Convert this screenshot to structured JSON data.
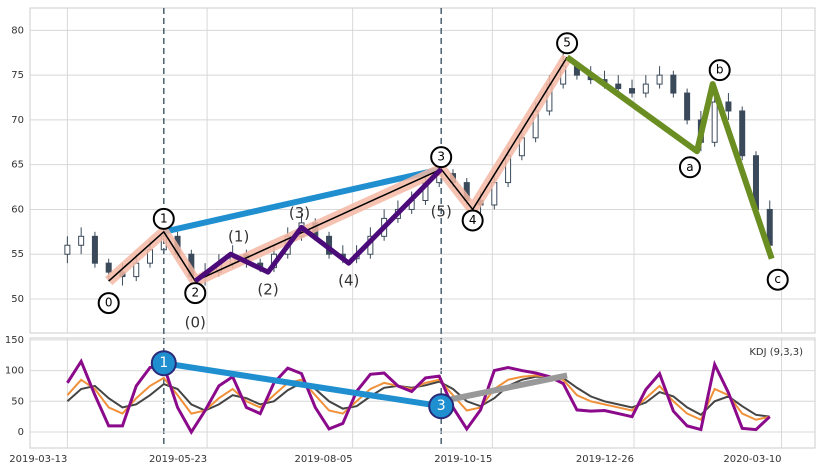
{
  "chart_data": [
    {
      "type": "candlestick",
      "x": [
        "2019-03-13",
        "2019-03-20",
        "2019-03-27",
        "2019-04-03",
        "2019-04-10",
        "2019-04-17",
        "2019-04-24",
        "2019-05-01",
        "2019-05-08",
        "2019-05-15",
        "2019-05-22",
        "2019-05-29",
        "2019-06-05",
        "2019-06-12",
        "2019-06-19",
        "2019-06-26",
        "2019-07-03",
        "2019-07-10",
        "2019-07-17",
        "2019-07-24",
        "2019-07-31",
        "2019-08-07",
        "2019-08-14",
        "2019-08-21",
        "2019-08-28",
        "2019-09-04",
        "2019-09-11",
        "2019-09-18",
        "2019-09-25",
        "2019-10-02",
        "2019-10-09",
        "2019-10-16",
        "2019-10-23",
        "2019-10-30",
        "2019-11-06",
        "2019-11-13",
        "2019-11-20",
        "2019-11-27",
        "2019-12-04",
        "2019-12-11",
        "2019-12-18",
        "2019-12-25",
        "2020-01-01",
        "2020-01-08",
        "2020-01-15",
        "2020-01-22",
        "2020-01-29",
        "2020-02-05",
        "2020-02-12",
        "2020-02-19",
        "2020-02-26",
        "2020-03-04"
      ],
      "open": [
        55,
        56,
        57,
        54,
        53,
        52.5,
        54,
        55.5,
        57,
        55,
        52.5,
        53,
        54,
        55,
        54,
        53.5,
        55,
        57,
        58.5,
        57,
        55,
        54.5,
        55,
        57,
        59,
        60,
        61,
        63,
        64,
        63,
        61,
        60.5,
        63,
        66,
        68,
        71,
        74,
        76,
        75,
        74.5,
        74,
        73.5,
        73,
        74,
        75,
        73,
        70,
        67.5,
        72,
        71,
        66,
        60
      ],
      "high": [
        57,
        58,
        57.5,
        54.5,
        54,
        55,
        56.5,
        58,
        57.5,
        55.5,
        54,
        55,
        56,
        55.5,
        54.5,
        56,
        58,
        59.5,
        59,
        57.5,
        56,
        56,
        58,
        60,
        61,
        62,
        64,
        65,
        64.5,
        63.5,
        62,
        64,
        67,
        69,
        72,
        75,
        77.5,
        76.5,
        76,
        75.5,
        75,
        74.5,
        75,
        76,
        75.5,
        73.5,
        71,
        73,
        73,
        71.5,
        66.5,
        61
      ],
      "low": [
        54,
        55,
        53.5,
        52,
        51.5,
        52,
        53.5,
        55,
        54.5,
        52,
        51.5,
        52.5,
        53.5,
        53.5,
        53,
        53,
        54.5,
        56.5,
        56.5,
        54.5,
        54,
        54,
        54.5,
        56.5,
        58.5,
        59.5,
        60.5,
        62.5,
        62.5,
        60.5,
        59.5,
        60,
        62.5,
        65.5,
        67.5,
        70.5,
        73.5,
        74.5,
        74,
        73.5,
        73,
        72.5,
        72.5,
        73.5,
        72.5,
        69.5,
        66.5,
        67,
        70,
        65.5,
        59.5,
        55
      ],
      "close": [
        56,
        57,
        54,
        53,
        52.5,
        54,
        55.5,
        57,
        55,
        52.5,
        53,
        54,
        55,
        54,
        53.5,
        55,
        57,
        58.5,
        57,
        55,
        54.5,
        55,
        57,
        59,
        60,
        61,
        63,
        64,
        63,
        61,
        60.5,
        63,
        66,
        68,
        71,
        74,
        76,
        75,
        74.5,
        74,
        73.5,
        73,
        74,
        75,
        73,
        70,
        67.5,
        72,
        71,
        66,
        60,
        56
      ],
      "color": "#3b4a5a",
      "xlim": [
        "2019-02-22",
        "2020-03-27"
      ],
      "xticks": [
        "2019-03-13",
        "2019-05-23",
        "2019-08-05",
        "2019-10-15",
        "2019-12-26",
        "2020-03-10"
      ],
      "ylim": [
        46.2,
        82.5
      ],
      "yticks": [
        50,
        55,
        60,
        65,
        70,
        75,
        80
      ],
      "grid": true,
      "vlines": {
        "color": "#4a6070",
        "x": [
          "2019-05-01",
          "2019-09-19"
        ]
      },
      "impulse": {
        "color": "#f5b7a3",
        "line_color": "#000000",
        "points": [
          {
            "label": "0",
            "x": "2019-04-03",
            "y": 52
          },
          {
            "label": "1",
            "x": "2019-05-01",
            "y": 57.5
          },
          {
            "label": "2",
            "x": "2019-05-17",
            "y": 52
          },
          {
            "label": "3",
            "x": "2019-09-19",
            "y": 64.5
          },
          {
            "label": "4",
            "x": "2019-10-05",
            "y": 60
          },
          {
            "label": "5",
            "x": "2019-11-22",
            "y": 77
          }
        ]
      },
      "subwaves": {
        "color": "#4b0c7a",
        "points": [
          {
            "label": "(0)",
            "x": "2019-05-17",
            "y": 52
          },
          {
            "label": "(1)",
            "x": "2019-06-04",
            "y": 55
          },
          {
            "label": "(2)",
            "x": "2019-06-23",
            "y": 53
          },
          {
            "label": "(3)",
            "x": "2019-07-10",
            "y": 58
          },
          {
            "label": "(4)",
            "x": "2019-08-03",
            "y": 54
          },
          {
            "label": "(5)",
            "x": "2019-09-19",
            "y": 64.5
          }
        ]
      },
      "correction": {
        "color": "#6b8e23",
        "points": [
          {
            "x": "2019-11-22",
            "y": 77
          },
          {
            "label": "a",
            "x": "2020-01-27",
            "y": 66.5
          },
          {
            "label": "b",
            "x": "2020-02-04",
            "y": 74
          },
          {
            "label": "c",
            "x": "2020-03-05",
            "y": 54.5
          }
        ]
      },
      "trend": {
        "color": "#1f8fd0",
        "points": [
          {
            "x": "2019-05-01",
            "y": 57.5
          },
          {
            "x": "2019-09-19",
            "y": 64.5
          }
        ]
      }
    },
    {
      "type": "line",
      "label": "KDJ (9,3,3)",
      "x": [
        "2019-03-13",
        "2019-03-20",
        "2019-03-27",
        "2019-04-03",
        "2019-04-10",
        "2019-04-17",
        "2019-04-24",
        "2019-05-01",
        "2019-05-08",
        "2019-05-15",
        "2019-05-22",
        "2019-05-29",
        "2019-06-05",
        "2019-06-12",
        "2019-06-19",
        "2019-06-26",
        "2019-07-03",
        "2019-07-10",
        "2019-07-17",
        "2019-07-24",
        "2019-07-31",
        "2019-08-07",
        "2019-08-14",
        "2019-08-21",
        "2019-08-28",
        "2019-09-04",
        "2019-09-11",
        "2019-09-18",
        "2019-09-25",
        "2019-10-02",
        "2019-10-09",
        "2019-10-16",
        "2019-10-23",
        "2019-10-30",
        "2019-11-06",
        "2019-11-13",
        "2019-11-20",
        "2019-11-27",
        "2019-12-04",
        "2019-12-11",
        "2019-12-18",
        "2019-12-25",
        "2020-01-01",
        "2020-01-08",
        "2020-01-15",
        "2020-01-22",
        "2020-01-29",
        "2020-02-05",
        "2020-02-12",
        "2020-02-19",
        "2020-02-26",
        "2020-03-04"
      ],
      "series": [
        {
          "color": "#444444",
          "values": [
            50,
            70,
            75,
            55,
            40,
            45,
            60,
            78,
            70,
            45,
            35,
            45,
            60,
            55,
            45,
            50,
            68,
            80,
            70,
            50,
            38,
            42,
            58,
            72,
            75,
            72,
            76,
            82,
            70,
            50,
            42,
            55,
            75,
            85,
            90,
            90,
            88,
            72,
            58,
            50,
            45,
            40,
            48,
            65,
            58,
            40,
            28,
            50,
            58,
            42,
            28,
            25
          ]
        },
        {
          "color": "#f0913a",
          "values": [
            60,
            85,
            70,
            40,
            30,
            55,
            75,
            88,
            60,
            30,
            35,
            55,
            70,
            50,
            40,
            60,
            80,
            85,
            60,
            35,
            30,
            50,
            70,
            80,
            75,
            70,
            80,
            85,
            60,
            35,
            40,
            70,
            85,
            90,
            92,
            90,
            85,
            60,
            50,
            45,
            40,
            35,
            55,
            75,
            50,
            30,
            20,
            70,
            60,
            30,
            20,
            25
          ]
        },
        {
          "color": "#8b0a8b",
          "values": [
            80,
            115,
            60,
            10,
            10,
            75,
            105,
            108,
            40,
            0,
            35,
            75,
            90,
            40,
            30,
            80,
            104,
            95,
            40,
            5,
            14,
            66,
            94,
            96,
            75,
            66,
            88,
            91,
            40,
            5,
            36,
            100,
            105,
            100,
            96,
            90,
            79,
            36,
            34,
            35,
            30,
            25,
            69,
            95,
            34,
            10,
            4,
            110,
            64,
            6,
            4,
            25
          ]
        }
      ],
      "xlim": [
        "2019-02-22",
        "2020-03-27"
      ],
      "ylim": [
        -26,
        153
      ],
      "yticks": [
        0,
        50,
        100,
        150
      ],
      "grid": true,
      "markers": {
        "color": "#1f8fd0",
        "points": [
          {
            "label": "1",
            "x": "2019-05-01",
            "y": 112
          },
          {
            "label": "3",
            "x": "2019-09-19",
            "y": 42
          }
        ]
      },
      "trend": {
        "color": "#999999",
        "points": [
          {
            "x": "2019-09-19",
            "y": 50
          },
          {
            "x": "2019-11-22",
            "y": 92
          }
        ]
      }
    }
  ]
}
